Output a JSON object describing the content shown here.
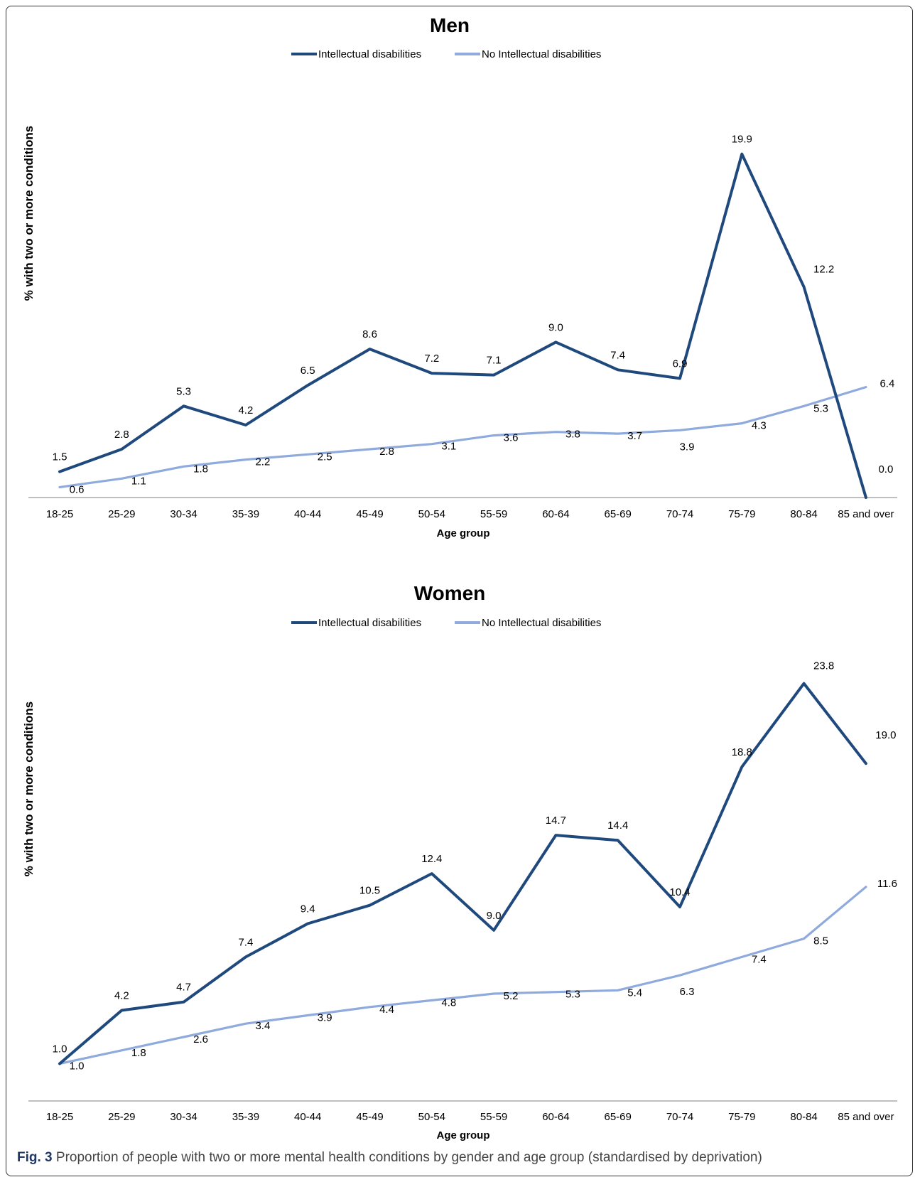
{
  "colors": {
    "intellectual": "#1f497d",
    "no_intellectual": "#8faadc",
    "axis": "#999999",
    "text": "#000000"
  },
  "caption": {
    "label": "Fig. 3",
    "text": "Proportion of people with two or more mental health conditions by gender and age group (standardised by deprivation)"
  },
  "chart_data": [
    {
      "type": "line",
      "title": "Men",
      "xlabel": "Age group",
      "ylabel": "% with two or more  conditions",
      "categories": [
        "18-25",
        "25-29",
        "30-34",
        "35-39",
        "40-44",
        "45-49",
        "50-54",
        "55-59",
        "60-64",
        "65-69",
        "70-74",
        "75-79",
        "80-84",
        "85 and over"
      ],
      "ylim": [
        0,
        21
      ],
      "grid": false,
      "legend": "top-center",
      "series": [
        {
          "name": "Intellectual disabilities",
          "color": "#1f497d",
          "values": [
            1.5,
            2.8,
            5.3,
            4.2,
            6.5,
            8.6,
            7.2,
            7.1,
            9.0,
            7.4,
            6.9,
            19.9,
            12.2,
            0.0
          ]
        },
        {
          "name": "No Intellectual disabilities",
          "color": "#8faadc",
          "values": [
            0.6,
            1.1,
            1.8,
            2.2,
            2.5,
            2.8,
            3.1,
            3.6,
            3.8,
            3.7,
            3.9,
            4.3,
            5.3,
            6.4
          ]
        }
      ]
    },
    {
      "type": "line",
      "title": "Women",
      "xlabel": "Age group",
      "ylabel": "% with two or more  conditions",
      "categories": [
        "18-25",
        "25-29",
        "30-34",
        "35-39",
        "40-44",
        "45-49",
        "50-54",
        "55-59",
        "60-64",
        "65-69",
        "70-74",
        "75-79",
        "80-84",
        "85 and over"
      ],
      "ylim": [
        0,
        26
      ],
      "grid": false,
      "legend": "top-center",
      "series": [
        {
          "name": "Intellectual disabilities",
          "color": "#1f497d",
          "values": [
            1.0,
            4.2,
            4.7,
            7.4,
            9.4,
            10.5,
            12.4,
            9.0,
            14.7,
            14.4,
            10.4,
            18.8,
            23.8,
            19.0
          ]
        },
        {
          "name": "No Intellectual disabilities",
          "color": "#8faadc",
          "values": [
            1.0,
            1.8,
            2.6,
            3.4,
            3.9,
            4.4,
            4.8,
            5.2,
            5.3,
            5.4,
            6.3,
            7.4,
            8.5,
            11.6
          ]
        }
      ]
    }
  ]
}
